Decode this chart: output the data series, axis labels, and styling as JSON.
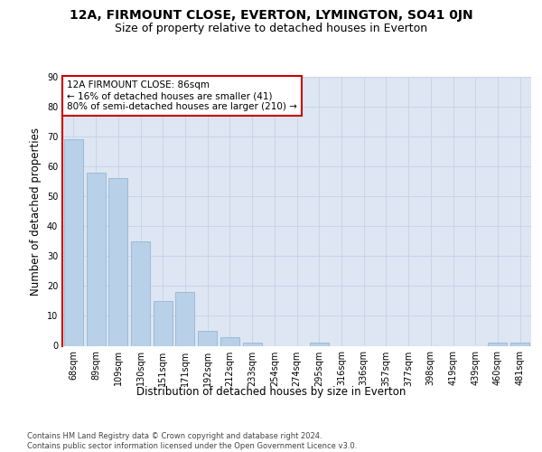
{
  "title": "12A, FIRMOUNT CLOSE, EVERTON, LYMINGTON, SO41 0JN",
  "subtitle": "Size of property relative to detached houses in Everton",
  "xlabel": "Distribution of detached houses by size in Everton",
  "ylabel": "Number of detached properties",
  "categories": [
    "68sqm",
    "89sqm",
    "109sqm",
    "130sqm",
    "151sqm",
    "171sqm",
    "192sqm",
    "212sqm",
    "233sqm",
    "254sqm",
    "274sqm",
    "295sqm",
    "316sqm",
    "336sqm",
    "357sqm",
    "377sqm",
    "398sqm",
    "419sqm",
    "439sqm",
    "460sqm",
    "481sqm"
  ],
  "values": [
    69,
    58,
    56,
    35,
    15,
    18,
    5,
    3,
    1,
    0,
    0,
    1,
    0,
    0,
    0,
    0,
    0,
    0,
    0,
    1,
    1
  ],
  "bar_color": "#b8d0e8",
  "bar_edge_color": "#8ab0d0",
  "vline_position": -0.5,
  "vline_color": "#cc0000",
  "annotation_line1": "12A FIRMOUNT CLOSE: 86sqm",
  "annotation_line2": "← 16% of detached houses are smaller (41)",
  "annotation_line3": "80% of semi-detached houses are larger (210) →",
  "annotation_box_facecolor": "#ffffff",
  "annotation_box_edgecolor": "#cc0000",
  "ylim": [
    0,
    90
  ],
  "yticks": [
    0,
    10,
    20,
    30,
    40,
    50,
    60,
    70,
    80,
    90
  ],
  "grid_color": "#c8d4e8",
  "bg_color": "#dde6f2",
  "footer_line1": "Contains HM Land Registry data © Crown copyright and database right 2024.",
  "footer_line2": "Contains public sector information licensed under the Open Government Licence v3.0.",
  "title_fontsize": 10,
  "subtitle_fontsize": 9,
  "xlabel_fontsize": 8.5,
  "ylabel_fontsize": 8.5,
  "tick_fontsize": 7,
  "annot_fontsize": 7.5,
  "footer_fontsize": 6
}
